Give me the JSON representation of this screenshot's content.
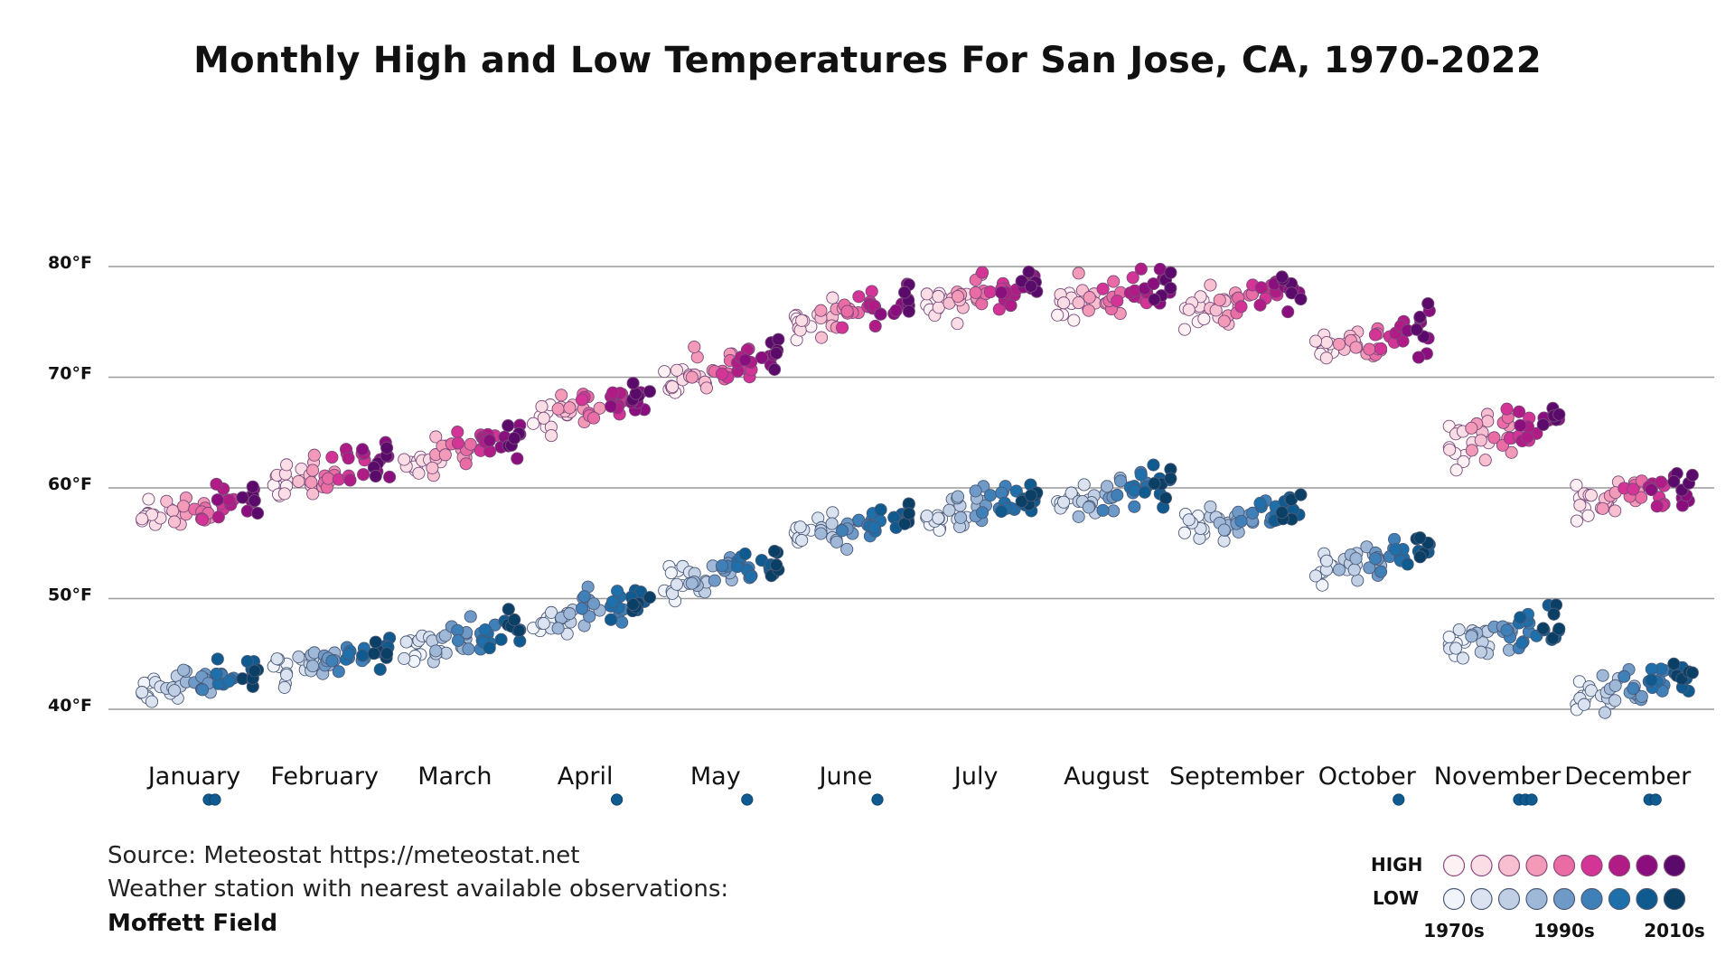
{
  "chart_data": {
    "type": "scatter",
    "title": "Monthly High and Low Temperatures For San Jose, CA, 1970-2022",
    "ylim": [
      35,
      87
    ],
    "y_ticks": [
      40,
      50,
      60,
      70,
      80
    ],
    "y_tick_labels": [
      "40°F",
      "50°F",
      "60°F",
      "70°F",
      "80°F"
    ],
    "grid": true,
    "categories": [
      "January",
      "February",
      "March",
      "April",
      "May",
      "June",
      "July",
      "August",
      "September",
      "October",
      "November",
      "December"
    ],
    "high_means": [
      58.5,
      61.5,
      63.5,
      67.5,
      71.0,
      76.0,
      77.5,
      77.5,
      77.0,
      73.5,
      65.0,
      59.5
    ],
    "low_means": [
      42.5,
      44.5,
      46.5,
      49.0,
      52.5,
      56.5,
      58.5,
      59.5,
      57.5,
      53.5,
      47.0,
      42.0
    ],
    "series": [
      {
        "name": "HIGH",
        "colors": [
          "#fdf1f4",
          "#fbdde6",
          "#f7bfd0",
          "#f39ab8",
          "#ea6ca5",
          "#d43495",
          "#b01b86",
          "#8a0e7d",
          "#5a0a6a"
        ]
      },
      {
        "name": "LOW",
        "colors": [
          "#f1f4fb",
          "#dbe3f0",
          "#c1cfe4",
          "#9fb8d8",
          "#6f9ac7",
          "#3f80b8",
          "#1f6fab",
          "#0f5a8f",
          "#0a3f66"
        ]
      }
    ],
    "legend_placement": "bottom-right",
    "legend_decades": [
      "1970s",
      "1990s",
      "2010s"
    ],
    "outliers_below_axis": [
      {
        "month": "January",
        "count": 2
      },
      {
        "month": "April",
        "count": 1
      },
      {
        "month": "May",
        "count": 1
      },
      {
        "month": "June",
        "count": 1
      },
      {
        "month": "October",
        "count": 1
      },
      {
        "month": "November",
        "count": 3
      },
      {
        "month": "December",
        "count": 2
      }
    ]
  },
  "footer": {
    "source": "Source: Meteostat https://meteostat.net",
    "station_note": "Weather station with nearest available observations:",
    "station_name": "Moffett Field"
  }
}
